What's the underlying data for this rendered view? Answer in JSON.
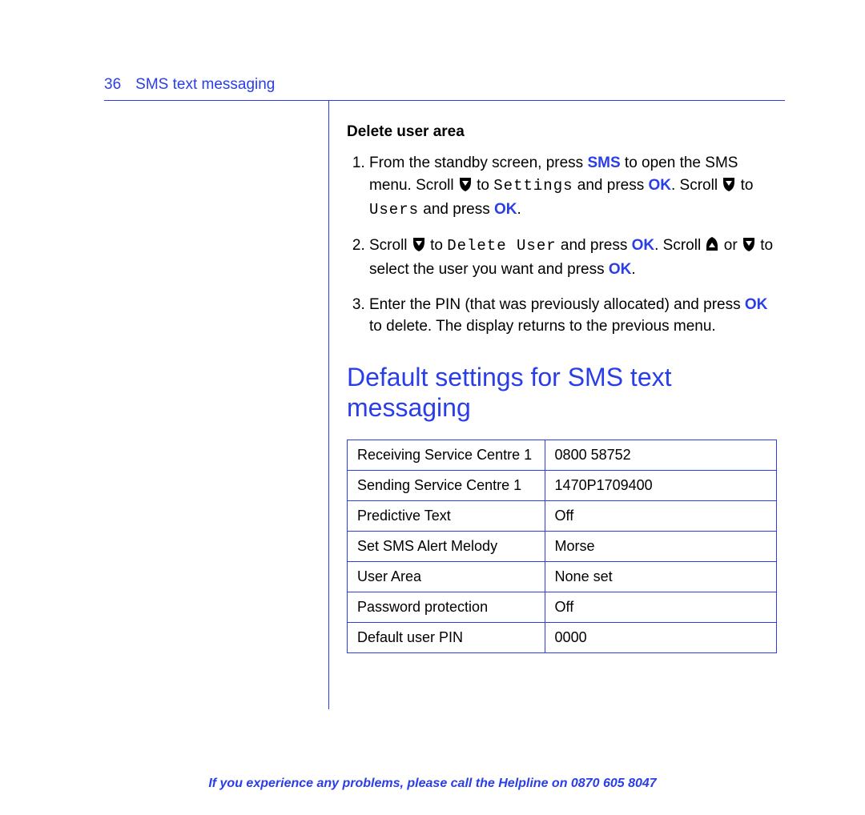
{
  "colors": {
    "accent": "#2a3ee8",
    "text": "#000000",
    "background": "#ffffff"
  },
  "header": {
    "page_number": "36",
    "section": "SMS text messaging"
  },
  "delete_area": {
    "heading": "Delete user area",
    "step1_a": "From the standby screen, press ",
    "step1_sms": "SMS",
    "step1_b": " to open the SMS menu. Scroll ",
    "step1_c": " to ",
    "step1_settings": "Settings",
    "step1_d": " and press ",
    "step1_ok1": "OK",
    "step1_e": ". Scroll ",
    "step1_f": " to ",
    "step1_users": "Users",
    "step1_g": " and press ",
    "step1_ok2": "OK",
    "step1_h": ".",
    "step2_a": "Scroll ",
    "step2_b": " to ",
    "step2_del": "Delete User",
    "step2_c": " and press ",
    "step2_ok1": "OK",
    "step2_d": ". Scroll ",
    "step2_e": " or ",
    "step2_f": " to select the user you want and press ",
    "step2_ok2": "OK",
    "step2_g": ".",
    "step3_a": "Enter the PIN (that was previously allocated) and press ",
    "step3_ok": "OK",
    "step3_b": " to delete. The display returns to the previous menu."
  },
  "defaults": {
    "heading": "Default settings for SMS text messaging",
    "rows": [
      {
        "label": "Receiving Service Centre 1",
        "value": "0800 58752"
      },
      {
        "label": "Sending Service Centre 1",
        "value": "1470P1709400"
      },
      {
        "label": "Predictive Text",
        "value": "Off"
      },
      {
        "label": "Set SMS Alert Melody",
        "value": "Morse"
      },
      {
        "label": "User Area",
        "value": "None set"
      },
      {
        "label": "Password protection",
        "value": "Off"
      },
      {
        "label": "Default user PIN",
        "value": "0000"
      }
    ]
  },
  "footer": {
    "text": "If you experience any problems, please call the Helpline on ",
    "phone": "0870 605 8047"
  }
}
